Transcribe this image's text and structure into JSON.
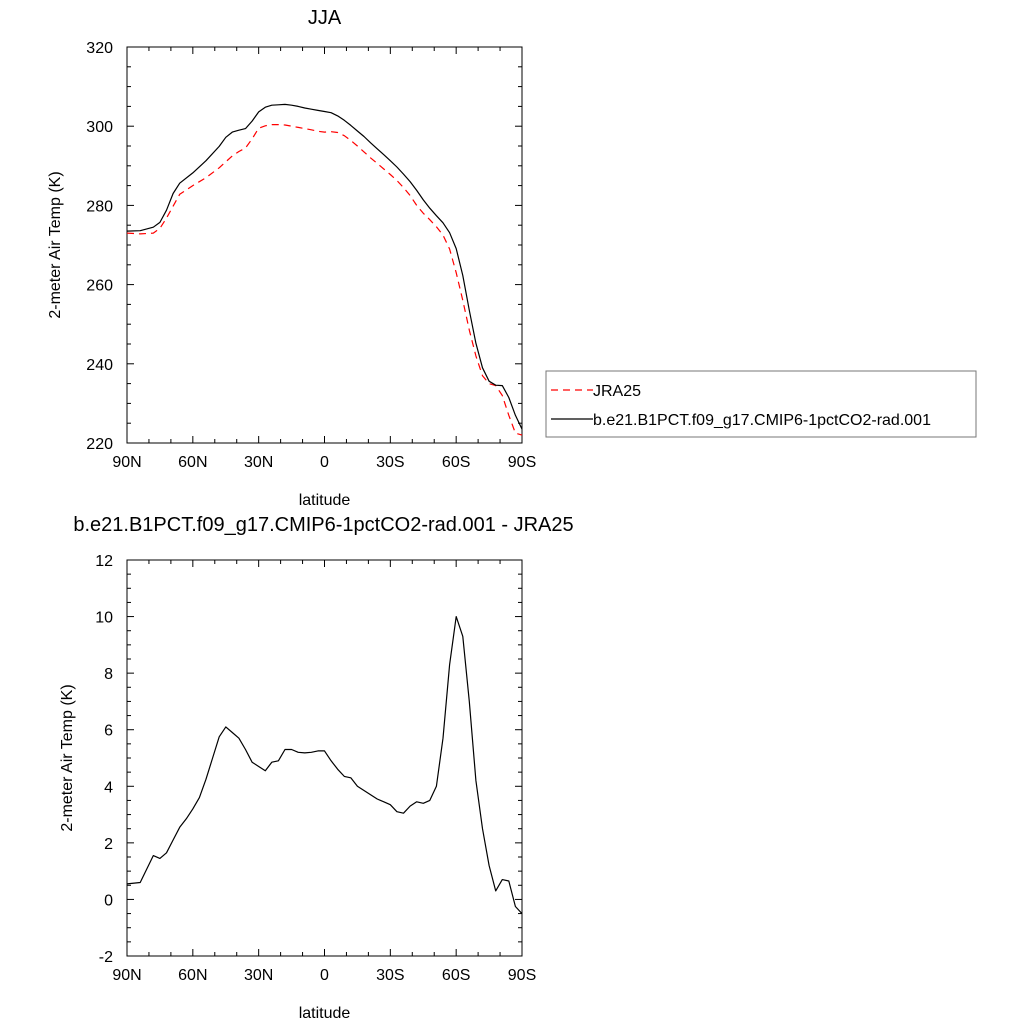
{
  "chart_data": [
    {
      "type": "line",
      "title": "JJA",
      "xlabel": "latitude",
      "ylabel": "2-meter Air Temp (K)",
      "xlim": [
        90,
        -90
      ],
      "ylim": [
        220,
        320
      ],
      "x_tick_values": [
        90,
        60,
        30,
        0,
        -30,
        -60,
        -90
      ],
      "x_tick_labels": [
        "90N",
        "60N",
        "30N",
        "0",
        "30S",
        "60S",
        "90S"
      ],
      "y_tick_values": [
        220,
        240,
        260,
        280,
        300,
        320
      ],
      "y_tick_labels": [
        "220",
        "240",
        "260",
        "280",
        "300",
        "320"
      ],
      "legend_position": "right",
      "series": [
        {
          "name": "JRA25",
          "color": "#ff0000",
          "dash": "dashed",
          "x": [
            90,
            84,
            78,
            75,
            72,
            69,
            66,
            60,
            54,
            48,
            45,
            42,
            39,
            36,
            33,
            30,
            27,
            24,
            21,
            18,
            15,
            12,
            9,
            6,
            3,
            0,
            -3,
            -6,
            -9,
            -12,
            -15,
            -18,
            -21,
            -24,
            -27,
            -30,
            -33,
            -36,
            -39,
            -42,
            -45,
            -48,
            -51,
            -54,
            -57,
            -60,
            -63,
            -66,
            -69,
            -72,
            -75,
            -78,
            -81,
            -84,
            -87,
            -90
          ],
          "y": [
            273,
            272.8,
            273,
            274.2,
            276.8,
            279.8,
            282.8,
            285,
            287,
            289.5,
            291,
            292.5,
            293.6,
            294.5,
            296.8,
            299.5,
            300.1,
            300.4,
            300.4,
            300.3,
            300,
            299.7,
            299.4,
            299.1,
            298.7,
            298.5,
            298.6,
            298.4,
            297.6,
            296.4,
            295,
            293.5,
            292,
            290.6,
            289.2,
            287.8,
            286.3,
            284.5,
            282.5,
            280,
            278,
            276.4,
            274.6,
            272.5,
            269,
            263,
            256,
            248.5,
            242,
            237,
            235,
            234.5,
            232,
            227,
            222.5,
            222
          ]
        },
        {
          "name": "b.e21.B1PCT.f09_g17.CMIP6-1pctCO2-rad.001",
          "color": "#000000",
          "dash": "solid",
          "x": [
            90,
            84,
            78,
            75,
            72,
            69,
            66,
            60,
            54,
            48,
            45,
            42,
            39,
            36,
            33,
            30,
            27,
            24,
            21,
            18,
            15,
            12,
            9,
            6,
            3,
            0,
            -3,
            -6,
            -9,
            -12,
            -15,
            -18,
            -21,
            -24,
            -27,
            -30,
            -33,
            -36,
            -39,
            -42,
            -45,
            -48,
            -51,
            -54,
            -57,
            -60,
            -63,
            -66,
            -69,
            -72,
            -75,
            -78,
            -81,
            -84,
            -87,
            -90
          ],
          "y": [
            273.5,
            273.6,
            274.5,
            275.7,
            278.8,
            283,
            285.6,
            288.2,
            291.3,
            294.9,
            297.2,
            298.5,
            299,
            299.4,
            301.3,
            303.6,
            304.8,
            305.3,
            305.4,
            305.5,
            305.3,
            305,
            304.6,
            304.3,
            304,
            303.7,
            303.4,
            302.6,
            301.5,
            300.2,
            298.8,
            297.4,
            295.8,
            294.3,
            292.8,
            291.3,
            289.7,
            287.9,
            286,
            283.8,
            281.4,
            279.3,
            277.4,
            275.6,
            273.1,
            269.1,
            262.3,
            253.5,
            245.2,
            239,
            235.6,
            234.6,
            234.5,
            231.5,
            227,
            223.5
          ]
        }
      ]
    },
    {
      "type": "line",
      "title": "b.e21.B1PCT.f09_g17.CMIP6-1pctCO2-rad.001 - JRA25",
      "xlabel": "latitude",
      "ylabel": "2-meter Air Temp (K)",
      "xlim": [
        90,
        -90
      ],
      "ylim": [
        -2,
        12
      ],
      "x_tick_values": [
        90,
        60,
        30,
        0,
        -30,
        -60,
        -90
      ],
      "x_tick_labels": [
        "90N",
        "60N",
        "30N",
        "0",
        "30S",
        "60S",
        "90S"
      ],
      "y_tick_values": [
        -2,
        0,
        2,
        4,
        6,
        8,
        10,
        12
      ],
      "y_tick_labels": [
        "-2",
        "0",
        "2",
        "4",
        "6",
        "8",
        "10",
        "12"
      ],
      "series": [
        {
          "color": "#000000",
          "dash": "solid",
          "x": [
            90,
            84,
            78,
            75,
            72,
            69,
            66,
            63,
            60,
            57,
            54,
            51,
            48,
            45,
            42,
            39,
            36,
            33,
            30,
            27,
            24,
            21,
            18,
            15,
            12,
            9,
            6,
            3,
            0,
            -3,
            -6,
            -9,
            -12,
            -15,
            -18,
            -21,
            -24,
            -27,
            -30,
            -33,
            -36,
            -39,
            -42,
            -45,
            -48,
            -51,
            -54,
            -57,
            -60,
            -63,
            -66,
            -69,
            -72,
            -75,
            -78,
            -81,
            -84,
            -87,
            -90
          ],
          "y": [
            0.55,
            0.6,
            1.55,
            1.45,
            1.65,
            2.1,
            2.55,
            2.85,
            3.2,
            3.6,
            4.25,
            5.0,
            5.75,
            6.1,
            5.9,
            5.7,
            5.3,
            4.85,
            4.7,
            4.55,
            4.85,
            4.9,
            5.3,
            5.3,
            5.2,
            5.18,
            5.2,
            5.25,
            5.25,
            4.9,
            4.6,
            4.35,
            4.3,
            4.0,
            3.85,
            3.7,
            3.55,
            3.45,
            3.35,
            3.1,
            3.05,
            3.3,
            3.45,
            3.4,
            3.5,
            4.0,
            5.7,
            8.3,
            10.0,
            9.3,
            7.0,
            4.2,
            2.5,
            1.2,
            0.3,
            0.7,
            0.65,
            -0.25,
            -0.5
          ]
        }
      ]
    }
  ]
}
